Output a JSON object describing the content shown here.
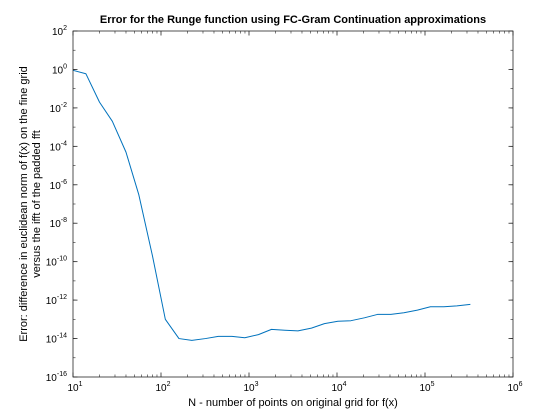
{
  "chart_data": {
    "type": "line",
    "title": "Error for the Runge function using FC-Gram Continuation approximations",
    "xlabel": "N - number of points on original grid for f(x)",
    "ylabel_lines": [
      "Error: difference in euclidean norm of f(x) on the fine grid",
      "versus the ifft of the padded fft"
    ],
    "xscale": "log",
    "yscale": "log",
    "xlim": [
      10,
      1000000
    ],
    "ylim": [
      1e-16,
      100
    ],
    "grid": false,
    "line_color": "#0072bd",
    "x_ticks": [
      {
        "base": "10",
        "exp": "1",
        "value": 10
      },
      {
        "base": "10",
        "exp": "2",
        "value": 100
      },
      {
        "base": "10",
        "exp": "3",
        "value": 1000
      },
      {
        "base": "10",
        "exp": "4",
        "value": 10000
      },
      {
        "base": "10",
        "exp": "5",
        "value": 100000
      },
      {
        "base": "10",
        "exp": "6",
        "value": 1000000
      }
    ],
    "y_ticks": [
      {
        "base": "10",
        "exp": "2",
        "value": 100
      },
      {
        "base": "10",
        "exp": "0",
        "value": 1
      },
      {
        "base": "10",
        "exp": "-2",
        "value": 0.01
      },
      {
        "base": "10",
        "exp": "-4",
        "value": 0.0001
      },
      {
        "base": "10",
        "exp": "-6",
        "value": 1e-06
      },
      {
        "base": "10",
        "exp": "-8",
        "value": 1e-08
      },
      {
        "base": "10",
        "exp": "-10",
        "value": 1e-10
      },
      {
        "base": "10",
        "exp": "-12",
        "value": 1e-12
      },
      {
        "base": "10",
        "exp": "-14",
        "value": 1e-14
      },
      {
        "base": "10",
        "exp": "-16",
        "value": 1e-16
      }
    ],
    "series": [
      {
        "x": [
          10,
          14,
          20,
          28,
          40,
          56,
          80,
          112,
          160,
          224,
          320,
          448,
          640,
          896,
          1280,
          1800,
          2560,
          3600,
          5120,
          7200,
          10240,
          14400,
          20480,
          28800,
          40960,
          57600,
          81920,
          115200,
          163840,
          230400,
          327680
        ],
        "y": [
          0.9,
          0.6,
          0.02,
          0.002,
          5e-05,
          3e-07,
          2e-10,
          1e-13,
          1e-14,
          8e-15,
          1e-14,
          1.3e-14,
          1.3e-14,
          1.1e-14,
          1.6e-14,
          3e-14,
          2.7e-14,
          2.5e-14,
          3.5e-14,
          6e-14,
          8e-14,
          8.5e-14,
          1.2e-13,
          1.8e-13,
          1.8e-13,
          2.2e-13,
          3e-13,
          4.5e-13,
          4.5e-13,
          5e-13,
          6e-13
        ]
      }
    ]
  }
}
